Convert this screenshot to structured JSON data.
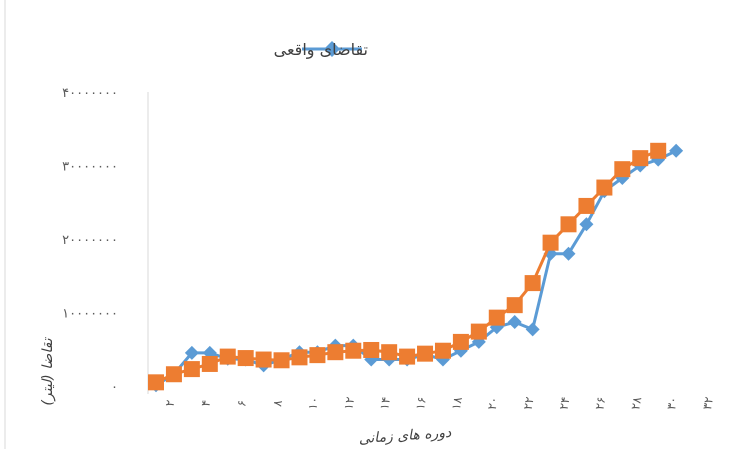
{
  "chart_data": {
    "type": "line",
    "xlabel": "دوره های زمانی",
    "ylabel": "تقاضا (لیتر)",
    "ylim": [
      0,
      40000000
    ],
    "yticks": [
      {
        "value": 0,
        "label": "۰"
      },
      {
        "value": 10000000,
        "label": "۱۰۰۰۰۰۰۰"
      },
      {
        "value": 20000000,
        "label": "۲۰۰۰۰۰۰۰"
      },
      {
        "value": 30000000,
        "label": "۳۰۰۰۰۰۰۰"
      },
      {
        "value": 40000000,
        "label": "۴۰۰۰۰۰۰۰"
      }
    ],
    "x": [
      1,
      2,
      3,
      4,
      5,
      6,
      7,
      8,
      9,
      10,
      11,
      12,
      13,
      14,
      15,
      16,
      17,
      18,
      19,
      20,
      21,
      22,
      23,
      24,
      25,
      26,
      27,
      28,
      29,
      30,
      31,
      32
    ],
    "xticks": [
      {
        "value": 2,
        "label": "۲"
      },
      {
        "value": 4,
        "label": "۴"
      },
      {
        "value": 6,
        "label": "۶"
      },
      {
        "value": 8,
        "label": "۸"
      },
      {
        "value": 10,
        "label": "۱۰"
      },
      {
        "value": 12,
        "label": "۱۲"
      },
      {
        "value": 14,
        "label": "۱۴"
      },
      {
        "value": 16,
        "label": "۱۶"
      },
      {
        "value": 18,
        "label": "۱۸"
      },
      {
        "value": 20,
        "label": "۲۰"
      },
      {
        "value": 22,
        "label": "۲۲"
      },
      {
        "value": 24,
        "label": "۲۴"
      },
      {
        "value": 26,
        "label": "۲۶"
      },
      {
        "value": 28,
        "label": "۲۸"
      },
      {
        "value": 30,
        "label": "۳۰"
      },
      {
        "value": 32,
        "label": "۳۲"
      }
    ],
    "legend_position": "top",
    "series": [
      {
        "name": "تقاضای واقعی",
        "color": "#5b9bd5",
        "marker": "diamond",
        "values": [
          100000,
          1600000,
          4500000,
          4500000,
          3700000,
          3600000,
          2800000,
          3600000,
          4600000,
          4600000,
          5500000,
          5500000,
          3600000,
          3600000,
          3600000,
          4300000,
          3600000,
          4800000,
          6000000,
          8000000,
          8700000,
          7700000,
          18000000,
          18000000,
          22000000,
          26500000,
          28300000,
          30000000,
          30800000,
          32000000,
          null,
          null
        ]
      },
      {
        "color": "#ed7d31",
        "marker": "square",
        "values": [
          500000,
          1600000,
          2300000,
          3000000,
          4000000,
          3800000,
          3600000,
          3500000,
          3900000,
          4200000,
          4600000,
          4800000,
          4900000,
          4600000,
          4000000,
          4400000,
          4800000,
          6000000,
          7400000,
          9300000,
          11000000,
          14000000,
          19500000,
          22000000,
          24500000,
          27000000,
          29500000,
          31000000,
          32000000,
          null,
          null,
          null
        ]
      }
    ]
  }
}
